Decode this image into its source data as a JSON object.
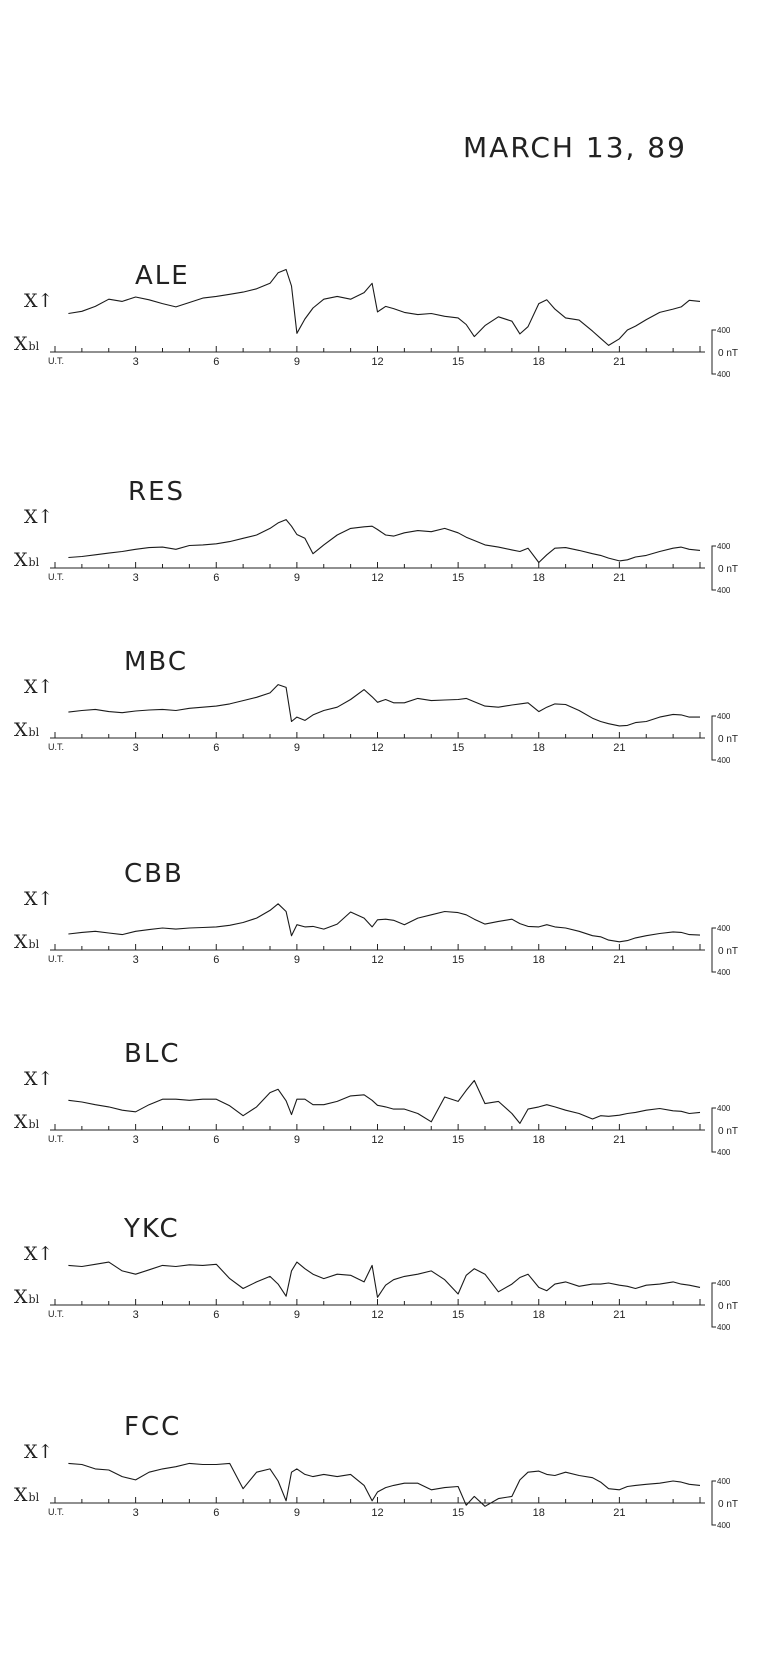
{
  "figure": {
    "title": "MARCH 13, 89",
    "x_label_prefix": "U.T.",
    "baseline_label_main": "X",
    "baseline_label_sub": "bl",
    "component_label": "X↑",
    "scale": {
      "top": "400",
      "zero": "0 nT",
      "bottom": "400"
    },
    "colors": {
      "ink": "#1a1a1a",
      "paper": "#ffffff"
    }
  },
  "chart_data": {
    "type": "line",
    "title": "MARCH 13, 89",
    "xlabel": "U.T.",
    "ylabel": "X",
    "x_unit": "hours UT",
    "y_unit": "nT",
    "xlim": [
      0,
      24
    ],
    "x_tick_labels": [
      "3",
      "6",
      "9",
      "12",
      "15",
      "18",
      "21"
    ],
    "y_scale_bar": [
      -400,
      0,
      400
    ],
    "grid": false,
    "panels": [
      {
        "station": "ALE",
        "series": [
          {
            "name": "ALE",
            "x": [
              0.5,
              1,
              1.5,
              2,
              2.5,
              3,
              3.5,
              4,
              4.5,
              5,
              5.5,
              6,
              6.5,
              7,
              7.5,
              8,
              8.3,
              8.6,
              8.8,
              9,
              9.3,
              9.6,
              10,
              10.5,
              11,
              11.5,
              11.8,
              12,
              12.3,
              12.6,
              13,
              13.5,
              14,
              14.5,
              15,
              15.3,
              15.6,
              16,
              16.5,
              17,
              17.3,
              17.6,
              18,
              18.3,
              18.6,
              19,
              19.5,
              20,
              20.3,
              20.6,
              21,
              21.3,
              21.6,
              22,
              22.5,
              23,
              23.3,
              23.6,
              24
            ],
            "y": [
              700,
              740,
              830,
              960,
              920,
              1000,
              950,
              880,
              820,
              900,
              980,
              1010,
              1050,
              1090,
              1150,
              1250,
              1440,
              1500,
              1200,
              340,
              600,
              800,
              960,
              1010,
              960,
              1080,
              1250,
              730,
              830,
              790,
              720,
              680,
              700,
              650,
              620,
              500,
              280,
              480,
              640,
              560,
              330,
              460,
              880,
              950,
              780,
              620,
              580,
              380,
              250,
              120,
              240,
              400,
              470,
              590,
              720,
              780,
              820,
              940,
              920
            ]
          }
        ]
      },
      {
        "station": "RES",
        "series": [
          {
            "name": "RES",
            "x": [
              0.5,
              1,
              1.5,
              2,
              2.5,
              3,
              3.5,
              4,
              4.5,
              5,
              5.5,
              6,
              6.5,
              7,
              7.5,
              8,
              8.3,
              8.6,
              8.8,
              9,
              9.3,
              9.6,
              10,
              10.5,
              11,
              11.5,
              11.8,
              12,
              12.3,
              12.6,
              13,
              13.5,
              14,
              14.5,
              15,
              15.3,
              15.6,
              16,
              16.5,
              17,
              17.3,
              17.6,
              18,
              18.3,
              18.6,
              19,
              19.5,
              20,
              20.3,
              20.6,
              21,
              21.3,
              21.6,
              22,
              22.5,
              23,
              23.3,
              23.6,
              24
            ],
            "y": [
              190,
              210,
              240,
              270,
              300,
              340,
              370,
              380,
              340,
              410,
              420,
              440,
              480,
              540,
              600,
              720,
              820,
              880,
              760,
              610,
              540,
              260,
              420,
              600,
              720,
              750,
              760,
              700,
              600,
              580,
              640,
              680,
              660,
              720,
              640,
              560,
              500,
              420,
              380,
              330,
              300,
              360,
              100,
              240,
              360,
              370,
              320,
              260,
              230,
              180,
              130,
              150,
              200,
              230,
              300,
              360,
              380,
              340,
              320
            ]
          }
        ]
      },
      {
        "station": "MBC",
        "series": [
          {
            "name": "MBC",
            "x": [
              0.5,
              1,
              1.5,
              2,
              2.5,
              3,
              3.5,
              4,
              4.5,
              5,
              5.5,
              6,
              6.5,
              7,
              7.5,
              8,
              8.3,
              8.6,
              8.8,
              9,
              9.3,
              9.6,
              10,
              10.5,
              11,
              11.5,
              11.8,
              12,
              12.3,
              12.6,
              13,
              13.5,
              14,
              14.5,
              15,
              15.3,
              15.6,
              16,
              16.5,
              17,
              17.3,
              17.6,
              18,
              18.3,
              18.6,
              19,
              19.5,
              20,
              20.3,
              20.6,
              21,
              21.3,
              21.6,
              22,
              22.5,
              23,
              23.3,
              23.6,
              24
            ],
            "y": [
              470,
              500,
              520,
              480,
              460,
              490,
              510,
              520,
              500,
              540,
              560,
              580,
              620,
              680,
              740,
              820,
              970,
              920,
              300,
              380,
              320,
              420,
              500,
              560,
              700,
              880,
              750,
              650,
              700,
              640,
              640,
              720,
              680,
              690,
              700,
              720,
              660,
              580,
              560,
              600,
              620,
              640,
              480,
              560,
              620,
              610,
              500,
              360,
              300,
              260,
              220,
              230,
              280,
              300,
              380,
              430,
              420,
              380,
              380
            ]
          }
        ]
      },
      {
        "station": "CBB",
        "series": [
          {
            "name": "CBB",
            "x": [
              0.5,
              1,
              1.5,
              2,
              2.5,
              3,
              3.5,
              4,
              4.5,
              5,
              5.5,
              6,
              6.5,
              7,
              7.5,
              8,
              8.3,
              8.6,
              8.8,
              9,
              9.3,
              9.6,
              10,
              10.5,
              11,
              11.5,
              11.8,
              12,
              12.3,
              12.6,
              13,
              13.5,
              14,
              14.5,
              15,
              15.3,
              15.6,
              16,
              16.5,
              17,
              17.3,
              17.6,
              18,
              18.3,
              18.6,
              19,
              19.5,
              20,
              20.3,
              20.6,
              21,
              21.3,
              21.6,
              22,
              22.5,
              23,
              23.3,
              23.6,
              24
            ],
            "y": [
              290,
              320,
              340,
              310,
              280,
              340,
              370,
              400,
              380,
              400,
              410,
              420,
              450,
              500,
              580,
              720,
              840,
              700,
              260,
              460,
              420,
              430,
              380,
              470,
              690,
              580,
              420,
              550,
              560,
              540,
              460,
              580,
              640,
              700,
              680,
              640,
              560,
              470,
              520,
              560,
              480,
              430,
              420,
              460,
              420,
              400,
              340,
              260,
              240,
              180,
              150,
              170,
              220,
              260,
              300,
              330,
              320,
              280,
              270
            ]
          }
        ]
      },
      {
        "station": "BLC",
        "series": [
          {
            "name": "BLC",
            "x": [
              0.5,
              1,
              1.5,
              2,
              2.5,
              3,
              3.5,
              4,
              4.5,
              5,
              5.5,
              6,
              6.5,
              7,
              7.5,
              8,
              8.3,
              8.6,
              8.8,
              9,
              9.3,
              9.6,
              10,
              10.5,
              11,
              11.5,
              11.8,
              12,
              12.3,
              12.6,
              13,
              13.5,
              14,
              14.5,
              15,
              15.3,
              15.6,
              16,
              16.5,
              17,
              17.3,
              17.6,
              18,
              18.3,
              18.6,
              19,
              19.5,
              20,
              20.3,
              20.6,
              21,
              21.3,
              21.6,
              22,
              22.5,
              23,
              23.3,
              23.6,
              24
            ],
            "y": [
              540,
              510,
              460,
              420,
              360,
              330,
              460,
              560,
              560,
              540,
              560,
              560,
              440,
              260,
              420,
              680,
              740,
              530,
              280,
              560,
              560,
              460,
              460,
              520,
              620,
              640,
              540,
              450,
              420,
              380,
              380,
              300,
              150,
              600,
              520,
              720,
              900,
              480,
              520,
              300,
              120,
              380,
              420,
              460,
              420,
              360,
              300,
              200,
              260,
              250,
              270,
              300,
              320,
              360,
              390,
              350,
              340,
              300,
              320
            ]
          }
        ]
      },
      {
        "station": "YKC",
        "series": [
          {
            "name": "YKC",
            "x": [
              0.5,
              1,
              1.5,
              2,
              2.5,
              3,
              3.5,
              4,
              4.5,
              5,
              5.5,
              6,
              6.5,
              7,
              7.5,
              8,
              8.3,
              8.6,
              8.8,
              9,
              9.3,
              9.6,
              10,
              10.5,
              11,
              11.5,
              11.8,
              12,
              12.3,
              12.6,
              13,
              13.5,
              14,
              14.5,
              15,
              15.3,
              15.6,
              16,
              16.5,
              17,
              17.3,
              17.6,
              18,
              18.3,
              18.6,
              19,
              19.5,
              20,
              20.3,
              20.6,
              21,
              21.3,
              21.6,
              22,
              22.5,
              23,
              23.3,
              23.6,
              24
            ],
            "y": [
              720,
              700,
              740,
              780,
              620,
              560,
              640,
              720,
              700,
              730,
              720,
              740,
              480,
              300,
              420,
              520,
              380,
              160,
              620,
              780,
              660,
              560,
              480,
              560,
              540,
              420,
              720,
              140,
              360,
              460,
              520,
              560,
              620,
              460,
              200,
              540,
              660,
              560,
              240,
              380,
              500,
              560,
              320,
              260,
              380,
              420,
              340,
              380,
              380,
              400,
              360,
              340,
              300,
              360,
              380,
              420,
              380,
              360,
              320
            ]
          }
        ]
      },
      {
        "station": "FCC",
        "series": [
          {
            "name": "FCC",
            "x": [
              0.5,
              1,
              1.5,
              2,
              2.5,
              3,
              3.5,
              4,
              4.5,
              5,
              5.5,
              6,
              6.5,
              7,
              7.5,
              8,
              8.3,
              8.6,
              8.8,
              9,
              9.3,
              9.6,
              10,
              10.5,
              11,
              11.5,
              11.8,
              12,
              12.3,
              12.6,
              13,
              13.5,
              14,
              14.5,
              15,
              15.3,
              15.6,
              16,
              16.5,
              17,
              17.3,
              17.6,
              18,
              18.3,
              18.6,
              19,
              19.5,
              20,
              20.3,
              20.6,
              21,
              21.3,
              21.6,
              22,
              22.5,
              23,
              23.3,
              23.6,
              24
            ],
            "y": [
              720,
              700,
              620,
              600,
              480,
              420,
              560,
              620,
              660,
              720,
              700,
              700,
              720,
              260,
              560,
              620,
              400,
              40,
              560,
              620,
              520,
              480,
              520,
              480,
              520,
              320,
              40,
              200,
              280,
              320,
              360,
              360,
              240,
              280,
              300,
              -40,
              120,
              -60,
              80,
              120,
              420,
              560,
              580,
              520,
              500,
              560,
              500,
              460,
              380,
              260,
              240,
              300,
              320,
              340,
              360,
              400,
              380,
              340,
              320
            ]
          }
        ]
      }
    ]
  },
  "panels": [
    {
      "station": "ALE"
    },
    {
      "station": "RES"
    },
    {
      "station": "MBC"
    },
    {
      "station": "CBB"
    },
    {
      "station": "BLC"
    },
    {
      "station": "YKC"
    },
    {
      "station": "FCC"
    }
  ]
}
